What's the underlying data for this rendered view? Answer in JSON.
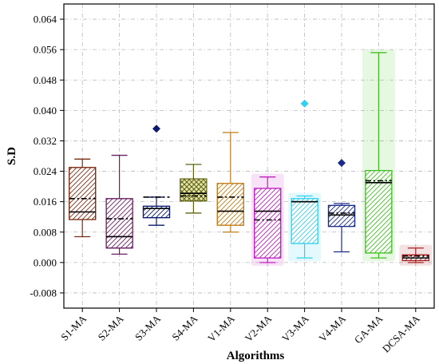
{
  "chart_data": {
    "type": "box",
    "title": "",
    "xlabel": "Algorithms",
    "ylabel": "S.D",
    "ylim": [
      -0.012,
      0.068
    ],
    "yticks": [
      -0.008,
      0.0,
      0.008,
      0.016,
      0.024,
      0.032,
      0.04,
      0.048,
      0.056,
      0.064
    ],
    "ytick_labels": [
      "-0.008",
      "0.000",
      "0.008",
      "0.016",
      "0.024",
      "0.032",
      "0.040",
      "0.048",
      "0.056",
      "0.064"
    ],
    "grid": true,
    "categories": [
      "S1-MA",
      "S2-MA",
      "S3-MA",
      "S4-MA",
      "V1-MA",
      "V2-MA",
      "V3-MA",
      "V4-MA",
      "GA-MA",
      "DCSA-MA"
    ],
    "boxes": [
      {
        "category": "S1-MA",
        "min": 0.0068,
        "q1": 0.0113,
        "median": 0.0133,
        "mean": 0.0168,
        "q3": 0.025,
        "max": 0.0272,
        "outliers": [],
        "color": "#7b2d14",
        "hatch": "diagonal",
        "shadow": false
      },
      {
        "category": "S2-MA",
        "min": 0.0022,
        "q1": 0.0038,
        "median": 0.0068,
        "mean": 0.0115,
        "q3": 0.0168,
        "max": 0.0282,
        "outliers": [],
        "color": "#6a2060",
        "hatch": "diagonal",
        "shadow": false
      },
      {
        "category": "S3-MA",
        "min": 0.0098,
        "q1": 0.0118,
        "median": 0.0142,
        "mean": 0.0172,
        "q3": 0.0148,
        "max": 0.0172,
        "outliers": [
          0.0352
        ],
        "color": "#0a1a6e",
        "hatch": "diagonal",
        "shadow": false
      },
      {
        "category": "S4-MA",
        "min": 0.013,
        "q1": 0.0162,
        "median": 0.0182,
        "mean": 0.0175,
        "q3": 0.022,
        "max": 0.0258,
        "outliers": [],
        "color": "#5e6410",
        "hatch": "cross",
        "shadow": false
      },
      {
        "category": "V1-MA",
        "min": 0.008,
        "q1": 0.0098,
        "median": 0.0135,
        "mean": 0.0172,
        "q3": 0.0208,
        "max": 0.0342,
        "outliers": [],
        "color": "#c07d18",
        "hatch": "diagonal",
        "shadow": false
      },
      {
        "category": "V2-MA",
        "min": 0.0,
        "q1": 0.0012,
        "median": 0.0135,
        "mean": 0.0112,
        "q3": 0.0195,
        "max": 0.0225,
        "outliers": [],
        "color": "#c020c0",
        "hatch": "diagonal",
        "shadow": true
      },
      {
        "category": "V3-MA",
        "min": 0.0012,
        "q1": 0.005,
        "median": 0.016,
        "mean": 0.016,
        "q3": 0.0168,
        "max": 0.0175,
        "outliers": [
          0.0418
        ],
        "color": "#30d0f0",
        "hatch": "diagonal",
        "shadow": true
      },
      {
        "category": "V4-MA",
        "min": 0.0028,
        "q1": 0.0095,
        "median": 0.0125,
        "mean": 0.013,
        "q3": 0.015,
        "max": 0.0155,
        "outliers": [
          0.0262
        ],
        "color": "#1a2a8a",
        "hatch": "diagonal",
        "shadow": false
      },
      {
        "category": "GA-MA",
        "min": 0.0012,
        "q1": 0.0025,
        "median": 0.021,
        "mean": 0.0215,
        "q3": 0.0242,
        "max": 0.0552,
        "outliers": [],
        "color": "#40c020",
        "hatch": "diagonal",
        "shadow": true
      },
      {
        "category": "DCSA-MA",
        "min": 0.0,
        "q1": 0.0005,
        "median": 0.0012,
        "mean": 0.0017,
        "q3": 0.002,
        "max": 0.0038,
        "outliers": [],
        "color": "#a82020",
        "hatch": "diagonal",
        "shadow": true
      }
    ]
  }
}
